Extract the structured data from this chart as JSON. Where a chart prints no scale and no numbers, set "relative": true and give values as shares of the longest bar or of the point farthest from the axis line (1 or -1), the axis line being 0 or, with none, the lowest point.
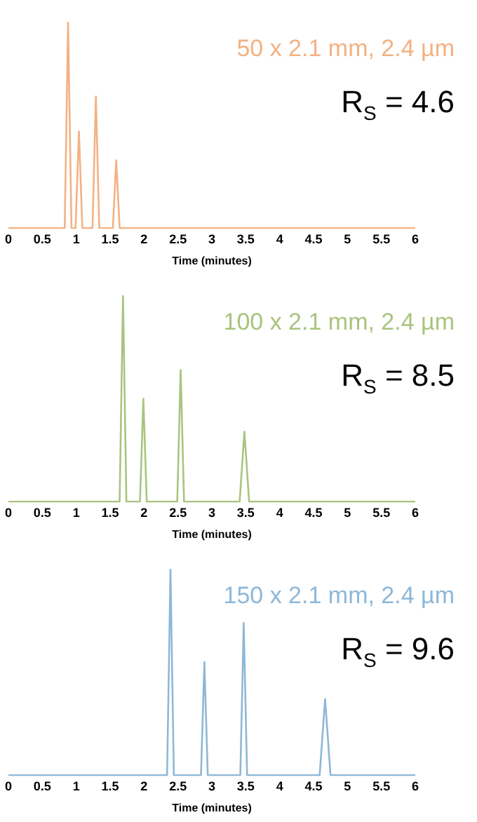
{
  "chart_data": [
    {
      "type": "line",
      "relative": true,
      "xlabel": "Time (minutes)",
      "xlim": [
        0,
        6
      ],
      "xticks": [
        0,
        0.5,
        1,
        1.5,
        2,
        2.5,
        3,
        3.5,
        4,
        4.5,
        5,
        5.5,
        6
      ],
      "annotations": [
        "R$_{S}$ = 4.6"
      ],
      "series": [
        {
          "name": "50 x 2.1 mm, 2.4 µm",
          "color": "#f4b183",
          "x": [
            0,
            0.83,
            0.88,
            0.93,
            0.99,
            1.04,
            1.09,
            1.24,
            1.29,
            1.34,
            1.54,
            1.59,
            1.64,
            6
          ],
          "values": [
            0,
            0,
            1,
            0,
            0,
            0.47,
            0,
            0,
            0.64,
            0,
            0,
            0.33,
            0,
            0
          ]
        }
      ]
    },
    {
      "type": "line",
      "relative": true,
      "xlabel": "Time (minutes)",
      "xlim": [
        0,
        6
      ],
      "xticks": [
        0,
        0.5,
        1,
        1.5,
        2,
        2.5,
        3,
        3.5,
        4,
        4.5,
        5,
        5.5,
        6
      ],
      "annotations": [
        "R$_{S}$ = 8.5"
      ],
      "series": [
        {
          "name": "100 x 2.1 mm, 2.4 µm",
          "color": "#a9c47e",
          "x": [
            0,
            1.64,
            1.69,
            1.74,
            1.94,
            1.99,
            2.04,
            2.49,
            2.54,
            2.59,
            3.41,
            3.48,
            3.55,
            6
          ],
          "values": [
            0,
            0,
            1,
            0,
            0,
            0.5,
            0,
            0,
            0.64,
            0,
            0,
            0.34,
            0,
            0
          ]
        }
      ]
    },
    {
      "type": "line",
      "relative": true,
      "xlabel": "Time (minutes)",
      "xlim": [
        0,
        6
      ],
      "xticks": [
        0,
        0.5,
        1,
        1.5,
        2,
        2.5,
        3,
        3.5,
        4,
        4.5,
        5,
        5.5,
        6
      ],
      "annotations": [
        "R$_{S}$ = 9.6"
      ],
      "series": [
        {
          "name": "150 x 2.1 mm, 2.4 µm",
          "color": "#8db8d8",
          "x": [
            0,
            2.34,
            2.39,
            2.44,
            2.84,
            2.89,
            2.94,
            3.42,
            3.47,
            3.52,
            4.59,
            4.67,
            4.75,
            6
          ],
          "values": [
            0,
            0,
            1,
            0,
            0,
            0.55,
            0,
            0,
            0.74,
            0,
            0,
            0.37,
            0,
            0
          ]
        }
      ]
    }
  ]
}
